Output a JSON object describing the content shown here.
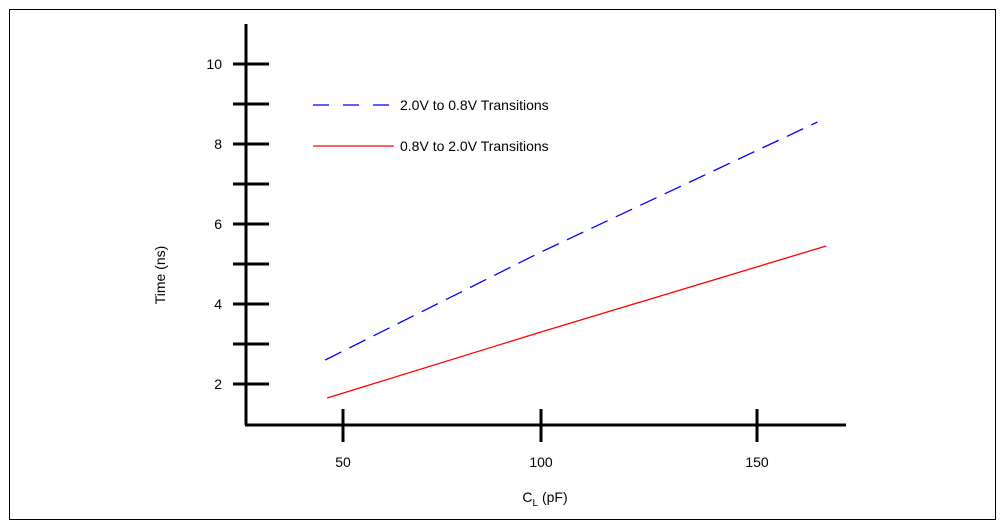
{
  "chart_data": {
    "type": "line",
    "xlabel_main": "C",
    "xlabel_sub": "L",
    "xlabel_unit": " (pF)",
    "ylabel": "Time (ns)",
    "x_ticks": [
      50,
      100,
      150
    ],
    "y_ticks": [
      2,
      4,
      6,
      8,
      10
    ],
    "y_minor_ticks": [
      3,
      5,
      7,
      9
    ],
    "xlim": [
      25.5,
      164
    ],
    "ylim": [
      1.0,
      10.9
    ],
    "series": [
      {
        "name": "2.0V to 0.8V Transitions",
        "style": "dashed",
        "color": "#0000ff",
        "x": [
          45.5,
          100,
          164
        ],
        "y": [
          2.6,
          5.3,
          8.55
        ]
      },
      {
        "name": "0.8V to 2.0V Transitions",
        "style": "solid",
        "color": "#ff0000",
        "x": [
          46,
          100,
          166
        ],
        "y": [
          1.65,
          3.3,
          5.45
        ]
      }
    ]
  }
}
